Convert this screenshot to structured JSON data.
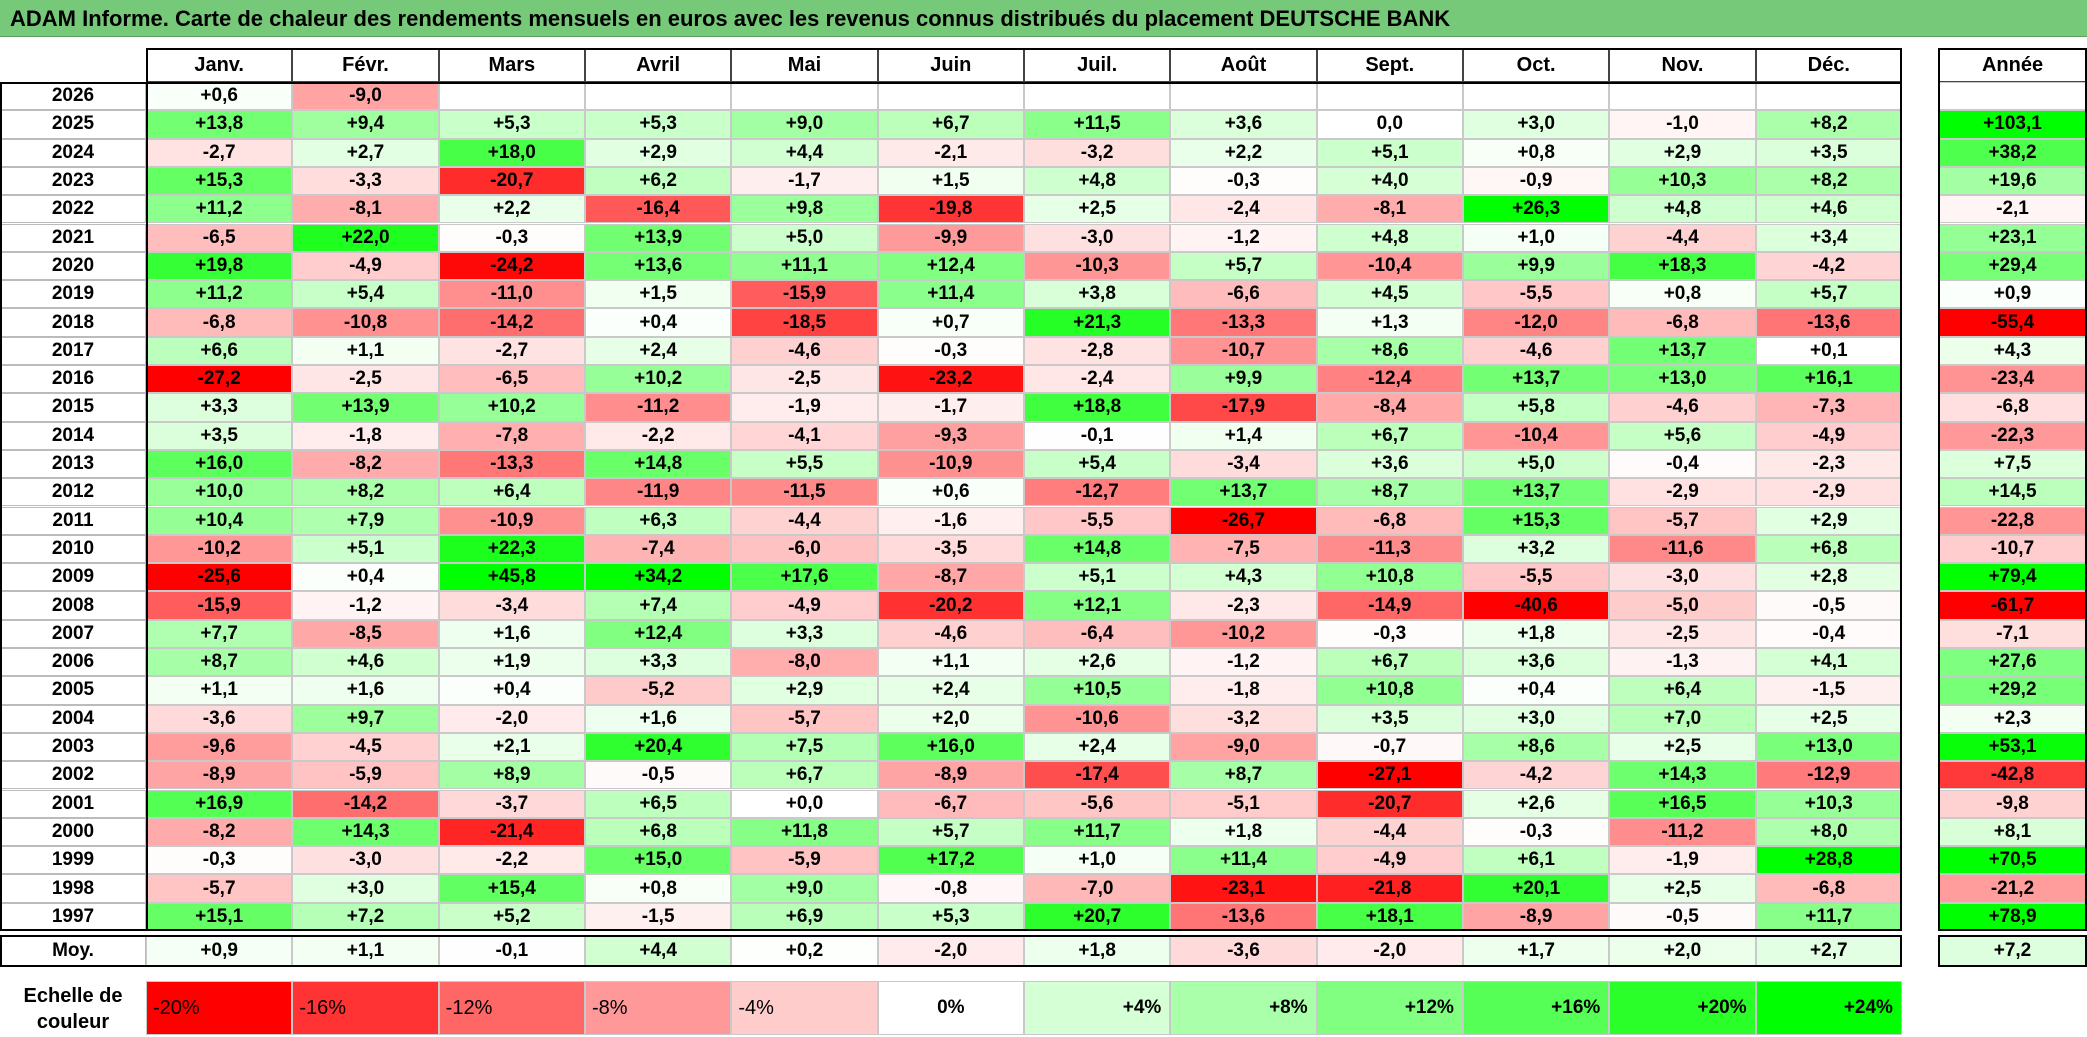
{
  "title": "ADAM Informe. Carte de chaleur des rendements mensuels en euros avec les revenus connus distribués du placement DEUTSCHE BANK",
  "colors": {
    "title_bg": "#77c97a",
    "positive": "#00ff00",
    "negative": "#ff0000",
    "neutral": "#ffffff"
  },
  "chart_data": {
    "type": "heatmap",
    "title": "ADAM Informe. Carte de chaleur des rendements mensuels en euros avec les revenus connus distribués du placement DEUTSCHE BANK",
    "months": [
      "Janv.",
      "Févr.",
      "Mars",
      "Avril",
      "Mai",
      "Juin",
      "Juil.",
      "Août",
      "Sept.",
      "Oct.",
      "Nov.",
      "Déc."
    ],
    "year_header": "Année",
    "rows": [
      {
        "year": "2026",
        "values": [
          "+0,6",
          "-9,0",
          "",
          "",
          "",
          "",
          "",
          "",
          "",
          "",
          "",
          ""
        ],
        "annual": ""
      },
      {
        "year": "2025",
        "values": [
          "+13,8",
          "+9,4",
          "+5,3",
          "+5,3",
          "+9,0",
          "+6,7",
          "+11,5",
          "+3,6",
          "0,0",
          "+3,0",
          "-1,0",
          "+8,2"
        ],
        "annual": "+103,1"
      },
      {
        "year": "2024",
        "values": [
          "-2,7",
          "+2,7",
          "+18,0",
          "+2,9",
          "+4,4",
          "-2,1",
          "-3,2",
          "+2,2",
          "+5,1",
          "+0,8",
          "+2,9",
          "+3,5"
        ],
        "annual": "+38,2"
      },
      {
        "year": "2023",
        "values": [
          "+15,3",
          "-3,3",
          "-20,7",
          "+6,2",
          "-1,7",
          "+1,5",
          "+4,8",
          "-0,3",
          "+4,0",
          "-0,9",
          "+10,3",
          "+8,2"
        ],
        "annual": "+19,6"
      },
      {
        "year": "2022",
        "values": [
          "+11,2",
          "-8,1",
          "+2,2",
          "-16,4",
          "+9,8",
          "-19,8",
          "+2,5",
          "-2,4",
          "-8,1",
          "+26,3",
          "+4,8",
          "+4,6"
        ],
        "annual": "-2,1"
      },
      {
        "year": "2021",
        "values": [
          "-6,5",
          "+22,0",
          "-0,3",
          "+13,9",
          "+5,0",
          "-9,9",
          "-3,0",
          "-1,2",
          "+4,8",
          "+1,0",
          "-4,4",
          "+3,4"
        ],
        "annual": "+23,1"
      },
      {
        "year": "2020",
        "values": [
          "+19,8",
          "-4,9",
          "-24,2",
          "+13,6",
          "+11,1",
          "+12,4",
          "-10,3",
          "+5,7",
          "-10,4",
          "+9,9",
          "+18,3",
          "-4,2"
        ],
        "annual": "+29,4"
      },
      {
        "year": "2019",
        "values": [
          "+11,2",
          "+5,4",
          "-11,0",
          "+1,5",
          "-15,9",
          "+11,4",
          "+3,8",
          "-6,6",
          "+4,5",
          "-5,5",
          "+0,8",
          "+5,7"
        ],
        "annual": "+0,9"
      },
      {
        "year": "2018",
        "values": [
          "-6,8",
          "-10,8",
          "-14,2",
          "+0,4",
          "-18,5",
          "+0,7",
          "+21,3",
          "-13,3",
          "+1,3",
          "-12,0",
          "-6,8",
          "-13,6"
        ],
        "annual": "-55,4"
      },
      {
        "year": "2017",
        "values": [
          "+6,6",
          "+1,1",
          "-2,7",
          "+2,4",
          "-4,6",
          "-0,3",
          "-2,8",
          "-10,7",
          "+8,6",
          "-4,6",
          "+13,7",
          "+0,1"
        ],
        "annual": "+4,3"
      },
      {
        "year": "2016",
        "values": [
          "-27,2",
          "-2,5",
          "-6,5",
          "+10,2",
          "-2,5",
          "-23,2",
          "-2,4",
          "+9,9",
          "-12,4",
          "+13,7",
          "+13,0",
          "+16,1"
        ],
        "annual": "-23,4"
      },
      {
        "year": "2015",
        "values": [
          "+3,3",
          "+13,9",
          "+10,2",
          "-11,2",
          "-1,9",
          "-1,7",
          "+18,8",
          "-17,9",
          "-8,4",
          "+5,8",
          "-4,6",
          "-7,3"
        ],
        "annual": "-6,8"
      },
      {
        "year": "2014",
        "values": [
          "+3,5",
          "-1,8",
          "-7,8",
          "-2,2",
          "-4,1",
          "-9,3",
          "-0,1",
          "+1,4",
          "+6,7",
          "-10,4",
          "+5,6",
          "-4,9"
        ],
        "annual": "-22,3"
      },
      {
        "year": "2013",
        "values": [
          "+16,0",
          "-8,2",
          "-13,3",
          "+14,8",
          "+5,5",
          "-10,9",
          "+5,4",
          "-3,4",
          "+3,6",
          "+5,0",
          "-0,4",
          "-2,3"
        ],
        "annual": "+7,5"
      },
      {
        "year": "2012",
        "values": [
          "+10,0",
          "+8,2",
          "+6,4",
          "-11,9",
          "-11,5",
          "+0,6",
          "-12,7",
          "+13,7",
          "+8,7",
          "+13,7",
          "-2,9",
          "-2,9"
        ],
        "annual": "+14,5"
      },
      {
        "year": "2011",
        "values": [
          "+10,4",
          "+7,9",
          "-10,9",
          "+6,3",
          "-4,4",
          "-1,6",
          "-5,5",
          "-26,7",
          "-6,8",
          "+15,3",
          "-5,7",
          "+2,9"
        ],
        "annual": "-22,8"
      },
      {
        "year": "2010",
        "values": [
          "-10,2",
          "+5,1",
          "+22,3",
          "-7,4",
          "-6,0",
          "-3,5",
          "+14,8",
          "-7,5",
          "-11,3",
          "+3,2",
          "-11,6",
          "+6,8"
        ],
        "annual": "-10,7"
      },
      {
        "year": "2009",
        "values": [
          "-25,6",
          "+0,4",
          "+45,8",
          "+34,2",
          "+17,6",
          "-8,7",
          "+5,1",
          "+4,3",
          "+10,8",
          "-5,5",
          "-3,0",
          "+2,8"
        ],
        "annual": "+79,4"
      },
      {
        "year": "2008",
        "values": [
          "-15,9",
          "-1,2",
          "-3,4",
          "+7,4",
          "-4,9",
          "-20,2",
          "+12,1",
          "-2,3",
          "-14,9",
          "-40,6",
          "-5,0",
          "-0,5"
        ],
        "annual": "-61,7"
      },
      {
        "year": "2007",
        "values": [
          "+7,7",
          "-8,5",
          "+1,6",
          "+12,4",
          "+3,3",
          "-4,6",
          "-6,4",
          "-10,2",
          "-0,3",
          "+1,8",
          "-2,5",
          "-0,4"
        ],
        "annual": "-7,1"
      },
      {
        "year": "2006",
        "values": [
          "+8,7",
          "+4,6",
          "+1,9",
          "+3,3",
          "-8,0",
          "+1,1",
          "+2,6",
          "-1,2",
          "+6,7",
          "+3,6",
          "-1,3",
          "+4,1"
        ],
        "annual": "+27,6"
      },
      {
        "year": "2005",
        "values": [
          "+1,1",
          "+1,6",
          "+0,4",
          "-5,2",
          "+2,9",
          "+2,4",
          "+10,5",
          "-1,8",
          "+10,8",
          "+0,4",
          "+6,4",
          "-1,5"
        ],
        "annual": "+29,2"
      },
      {
        "year": "2004",
        "values": [
          "-3,6",
          "+9,7",
          "-2,0",
          "+1,6",
          "-5,7",
          "+2,0",
          "-10,6",
          "-3,2",
          "+3,5",
          "+3,0",
          "+7,0",
          "+2,5"
        ],
        "annual": "+2,3"
      },
      {
        "year": "2003",
        "values": [
          "-9,6",
          "-4,5",
          "+2,1",
          "+20,4",
          "+7,5",
          "+16,0",
          "+2,4",
          "-9,0",
          "-0,7",
          "+8,6",
          "+2,5",
          "+13,0"
        ],
        "annual": "+53,1"
      },
      {
        "year": "2002",
        "values": [
          "-8,9",
          "-5,9",
          "+8,9",
          "-0,5",
          "+6,7",
          "-8,9",
          "-17,4",
          "+8,7",
          "-27,1",
          "-4,2",
          "+14,3",
          "-12,9"
        ],
        "annual": "-42,8"
      },
      {
        "year": "2001",
        "values": [
          "+16,9",
          "-14,2",
          "-3,7",
          "+6,5",
          "+0,0",
          "-6,7",
          "-5,6",
          "-5,1",
          "-20,7",
          "+2,6",
          "+16,5",
          "+10,3"
        ],
        "annual": "-9,8"
      },
      {
        "year": "2000",
        "values": [
          "-8,2",
          "+14,3",
          "-21,4",
          "+6,8",
          "+11,8",
          "+5,7",
          "+11,7",
          "+1,8",
          "-4,4",
          "-0,3",
          "-11,2",
          "+8,0"
        ],
        "annual": "+8,1"
      },
      {
        "year": "1999",
        "values": [
          "-0,3",
          "-3,0",
          "-2,2",
          "+15,0",
          "-5,9",
          "+17,2",
          "+1,0",
          "+11,4",
          "-4,9",
          "+6,1",
          "-1,9",
          "+28,8"
        ],
        "annual": "+70,5"
      },
      {
        "year": "1998",
        "values": [
          "-5,7",
          "+3,0",
          "+15,4",
          "+0,8",
          "+9,0",
          "-0,8",
          "-7,0",
          "-23,1",
          "-21,8",
          "+20,1",
          "+2,5",
          "-6,8"
        ],
        "annual": "-21,2"
      },
      {
        "year": "1997",
        "values": [
          "+15,1",
          "+7,2",
          "+5,2",
          "-1,5",
          "+6,9",
          "+5,3",
          "+20,7",
          "-13,6",
          "+18,1",
          "-8,9",
          "-0,5",
          "+11,7"
        ],
        "annual": "+78,9"
      }
    ],
    "average": {
      "label": "Moy.",
      "values": [
        "+0,9",
        "+1,1",
        "-0,1",
        "+4,4",
        "+0,2",
        "-2,0",
        "+1,8",
        "-3,6",
        "-2,0",
        "+1,7",
        "+2,0",
        "+2,7"
      ],
      "annual": "+7,2"
    },
    "scale": {
      "label": "Echelle de couleur",
      "stops": [
        "-20%",
        "-16%",
        "-12%",
        "-8%",
        "-4%",
        "0%",
        "+4%",
        "+8%",
        "+12%",
        "+16%",
        "+20%",
        "+24%"
      ]
    }
  }
}
